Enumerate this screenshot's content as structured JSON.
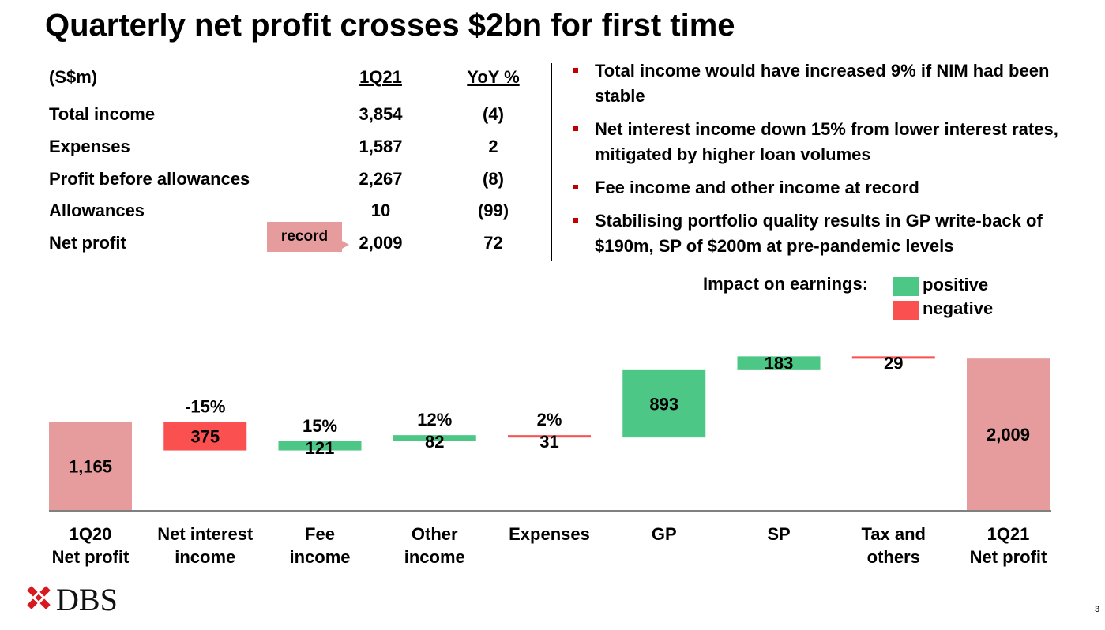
{
  "title": "Quarterly net profit crosses $2bn for first time",
  "table": {
    "header": {
      "label": "(S$m)",
      "col1": "1Q21",
      "col2": "YoY %"
    },
    "rows": [
      {
        "label": "Total income",
        "value": "3,854",
        "yoy": "(4)"
      },
      {
        "label": "Expenses",
        "value": "1,587",
        "yoy": "2"
      },
      {
        "label": "Profit before allowances",
        "value": "2,267",
        "yoy": "(8)"
      },
      {
        "label": "Allowances",
        "value": "10",
        "yoy": "(99)"
      },
      {
        "label": "Net profit",
        "value": "2,009",
        "yoy": "72"
      }
    ],
    "record_label": "record"
  },
  "bullets": [
    "Total income would have increased 9% if NIM had been stable",
    "Net interest income down 15% from lower interest rates, mitigated by higher loan volumes",
    "Fee income and other income at record",
    "Stabilising portfolio quality results in GP write-back of $190m, SP of $200m at pre-pandemic levels"
  ],
  "legend": {
    "label": "Impact on earnings:",
    "positive": "positive",
    "negative": "negative"
  },
  "colors": {
    "positive": "#4cc785",
    "negative": "#fa5050",
    "total": "#e69c9c",
    "bullet": "#c00000",
    "brand": "#d71920"
  },
  "chart_data": {
    "type": "waterfall",
    "categories": [
      [
        "1Q20",
        "Net profit"
      ],
      [
        "Net interest",
        "income"
      ],
      [
        "Fee",
        "income"
      ],
      [
        "Other",
        "income"
      ],
      [
        "Expenses"
      ],
      [
        "GP"
      ],
      [
        "SP"
      ],
      [
        "Tax and",
        "others"
      ],
      [
        "1Q21",
        "Net profit"
      ]
    ],
    "values": [
      1165,
      -375,
      121,
      82,
      -31,
      893,
      183,
      -29,
      2009
    ],
    "value_labels": [
      "1,165",
      "375",
      "121",
      "82",
      "31",
      "893",
      "183",
      "29",
      "2,009"
    ],
    "kinds": [
      "total",
      "negative",
      "positive",
      "positive",
      "negative",
      "positive",
      "positive",
      "negative",
      "total"
    ],
    "pct_labels": [
      "",
      "-15%",
      "15%",
      "12%",
      "2%",
      "",
      "",
      "",
      ""
    ]
  },
  "logo_text": "DBS",
  "page_number": "3"
}
